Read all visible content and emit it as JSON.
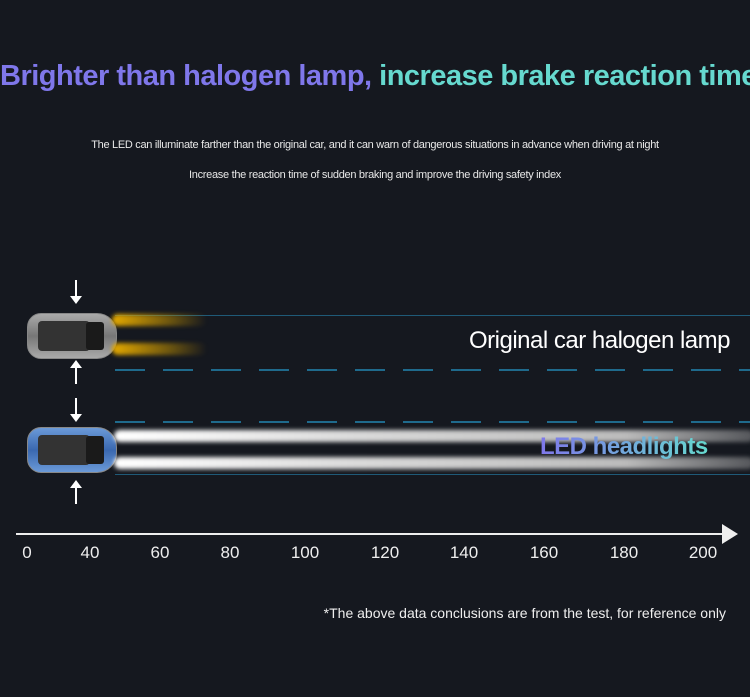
{
  "headline": {
    "part1": "Brighter than halogen lamp,",
    "part2": "increase brake reaction time"
  },
  "subtitles": [
    "The LED can illuminate farther than the original car, and it can warn of dangerous situations in advance when driving at night",
    "Increase the reaction time of sudden braking and improve the driving safety index"
  ],
  "rows": {
    "halogen_label": "Original car halogen lamp",
    "led_label": "LED headlights"
  },
  "axis": {
    "ticks": [
      "0",
      "40",
      "60",
      "80",
      "100",
      "120",
      "140",
      "160",
      "180",
      "200"
    ]
  },
  "footnote": "*The above data conclusions are from the test, for reference only",
  "colors": {
    "background": "#15181f",
    "purple": "#7f77ea",
    "teal": "#66d9cf",
    "halogen_beam": "#e4a900"
  }
}
